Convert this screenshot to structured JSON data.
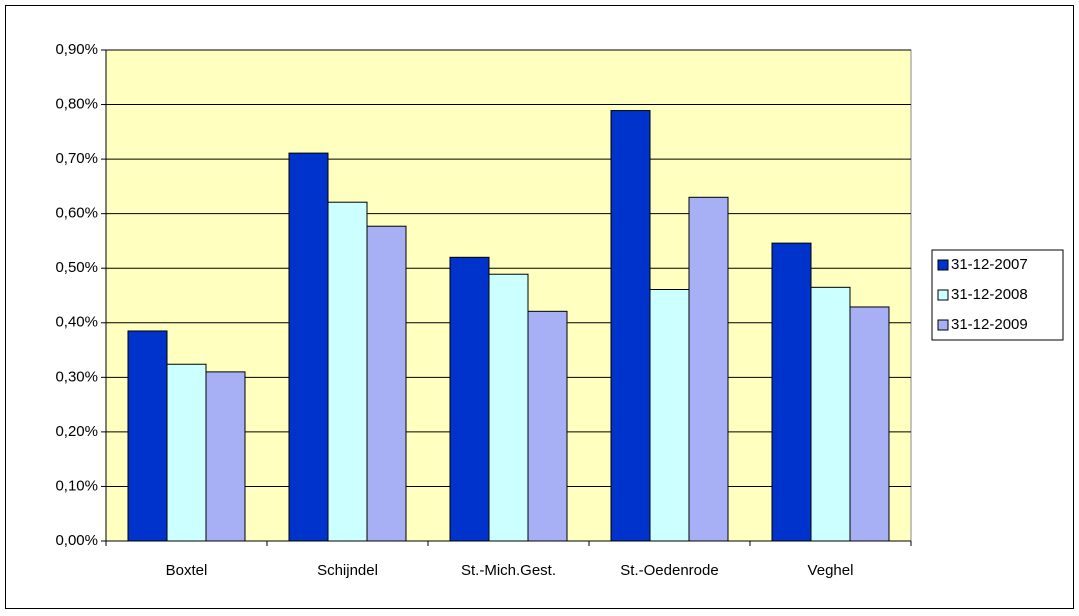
{
  "chart_data": {
    "type": "bar",
    "categories": [
      "Boxtel",
      "Schijndel",
      "St.-Mich.Gest.",
      "St.-Oedenrode",
      "Veghel"
    ],
    "series": [
      {
        "name": "31-12-2007",
        "color": "#0033cc",
        "values": [
          0.385,
          0.711,
          0.52,
          0.789,
          0.546
        ]
      },
      {
        "name": "31-12-2008",
        "color": "#ccffff",
        "values": [
          0.324,
          0.621,
          0.489,
          0.461,
          0.465
        ]
      },
      {
        "name": "31-12-2009",
        "color": "#a8b0f5",
        "values": [
          0.31,
          0.577,
          0.421,
          0.63,
          0.429
        ]
      }
    ],
    "ylim": [
      0,
      0.9
    ],
    "yticks": [
      {
        "value": 0,
        "label": "0,00%"
      },
      {
        "value": 0.1,
        "label": "0,10%"
      },
      {
        "value": 0.2,
        "label": "0,20%"
      },
      {
        "value": 0.3,
        "label": "0,30%"
      },
      {
        "value": 0.4,
        "label": "0,40%"
      },
      {
        "value": 0.5,
        "label": "0,50%"
      },
      {
        "value": 0.6,
        "label": "0,60%"
      },
      {
        "value": 0.7,
        "label": "0,70%"
      },
      {
        "value": 0.8,
        "label": "0,80%"
      },
      {
        "value": 0.9,
        "label": "0,90%"
      }
    ],
    "grid": true,
    "legend": "right"
  }
}
